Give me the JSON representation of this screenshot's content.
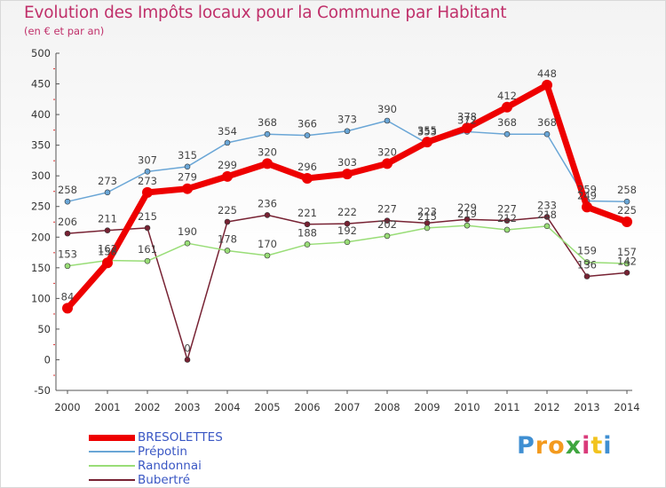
{
  "chart_data": {
    "type": "line",
    "title": "Evolution des Impôts locaux pour la Commune par Habitant",
    "subtitle": "(en € et par an)",
    "x": [
      "2000",
      "2001",
      "2002",
      "2003",
      "2004",
      "2005",
      "2006",
      "2007",
      "2008",
      "2009",
      "2010",
      "2011",
      "2012",
      "2013",
      "2014"
    ],
    "ylim": [
      -50,
      500
    ],
    "yticks": [
      "-50",
      "0",
      "50",
      "100",
      "150",
      "200",
      "250",
      "300",
      "350",
      "400",
      "450",
      "500"
    ],
    "grid": false,
    "legend_position": "bottom-left",
    "series": [
      {
        "name": "Prépotin",
        "color": "#6aa6d6",
        "width": 1.5,
        "values": [
          258,
          273,
          307,
          315,
          354,
          368,
          366,
          373,
          390,
          353,
          372,
          368,
          368,
          259,
          258
        ],
        "labels": [
          "258",
          "273",
          "307",
          "315",
          "354",
          "368",
          "366",
          "373",
          "390",
          "353",
          "372",
          "368",
          "368",
          "259",
          "258"
        ]
      },
      {
        "name": "Randonnai",
        "color": "#99dd77",
        "width": 1.5,
        "values": [
          153,
          162,
          161,
          190,
          178,
          170,
          188,
          192,
          202,
          215,
          219,
          212,
          218,
          159,
          157
        ],
        "labels": [
          "153",
          "162",
          "161",
          "190",
          "178",
          "170",
          "188",
          "192",
          "202",
          "215",
          "219",
          "212",
          "218",
          "159",
          "157"
        ]
      },
      {
        "name": "Bubertré",
        "color": "#772233",
        "width": 1.5,
        "values": [
          206,
          211,
          215,
          0,
          225,
          236,
          221,
          222,
          227,
          223,
          229,
          227,
          233,
          136,
          142
        ],
        "labels": [
          "206",
          "211",
          "215",
          "0",
          "225",
          "236",
          "221",
          "222",
          "227",
          "223",
          "229",
          "227",
          "233",
          "136",
          "142"
        ]
      },
      {
        "name": "BRESOLETTES",
        "color": "#ee0000",
        "width": 7,
        "values": [
          84,
          158,
          273,
          279,
          299,
          320,
          296,
          303,
          320,
          355,
          378,
          412,
          448,
          249,
          225
        ],
        "labels": [
          "84",
          "158",
          "273",
          "279",
          "299",
          "320",
          "296",
          "303",
          "320",
          "355",
          "378",
          "412",
          "448",
          "249",
          "225"
        ]
      }
    ],
    "legend_order": [
      3,
      0,
      1,
      2
    ]
  },
  "logo": {
    "letters": [
      "P",
      "r",
      "o",
      "x",
      "i",
      "t",
      "i"
    ],
    "colors": [
      "#3f8fd2",
      "#f39a1e",
      "#f39a1e",
      "#3fa63f",
      "#d93a7a",
      "#f2c31e",
      "#3f8fd2"
    ]
  }
}
